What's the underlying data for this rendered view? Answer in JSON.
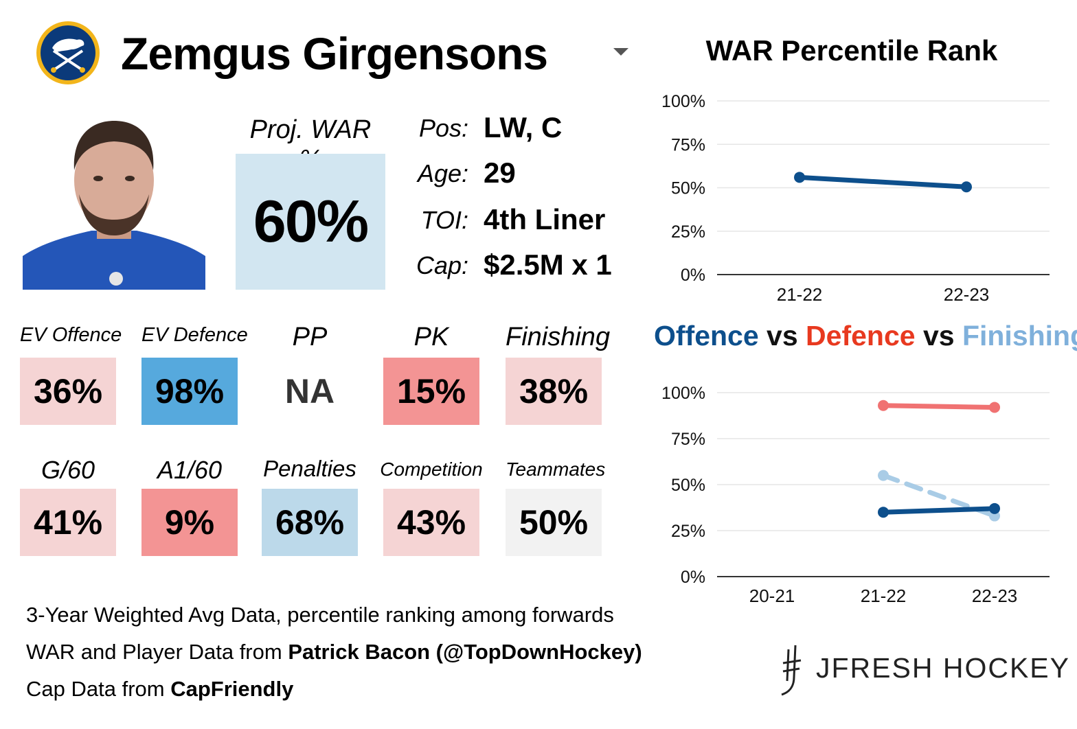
{
  "player": {
    "name": "Zemgus Girgensons",
    "team_logo": "sabres-logo-icon",
    "photo": "player-headshot-image"
  },
  "proj_war": {
    "label": "Proj. WAR %",
    "value": "60%"
  },
  "info": [
    {
      "label": "Pos:",
      "value": "LW, C"
    },
    {
      "label": "Age:",
      "value": "29"
    },
    {
      "label": "TOI:",
      "value": "4th Liner"
    },
    {
      "label": "Cap:",
      "value": "$2.5M x 1"
    }
  ],
  "stats_row1": [
    {
      "label": "EV Offence",
      "value": "36%",
      "color": "#f5d4d4"
    },
    {
      "label": "EV Defence",
      "value": "98%",
      "color": "#56a9dd"
    },
    {
      "label": "PP",
      "value": "NA",
      "color": "#ffffff"
    },
    {
      "label": "PK",
      "value": "15%",
      "color": "#f39494"
    },
    {
      "label": "Finishing",
      "value": "38%",
      "color": "#f5d4d4"
    }
  ],
  "stats_row2": [
    {
      "label": "G/60",
      "value": "41%",
      "color": "#f5d4d4"
    },
    {
      "label": "A1/60",
      "value": "9%",
      "color": "#f39494"
    },
    {
      "label": "Penalties",
      "value": "68%",
      "color": "#bcd9ea"
    },
    {
      "label": "Competition",
      "value": "43%",
      "color": "#f5d4d4"
    },
    {
      "label": "Teammates",
      "value": "50%",
      "color": "#f2f2f2"
    }
  ],
  "footer": {
    "line1": "3-Year Weighted Avg Data, percentile ranking among forwards",
    "line2_prefix": "WAR and Player Data from ",
    "line2_bold": "Patrick Bacon (@TopDownHockey)",
    "line3_prefix": "Cap Data from ",
    "line3_bold": "CapFriendly"
  },
  "brand": "JFRESH HOCKEY",
  "chart_data": [
    {
      "type": "line",
      "title": "WAR Percentile Rank",
      "categories": [
        "21-22",
        "22-23"
      ],
      "series": [
        {
          "values": [
            56,
            50.5
          ],
          "color": "#0d4f8c"
        }
      ],
      "yticks": [
        "100%",
        "75%",
        "50%",
        "25%",
        "0%"
      ],
      "ylim": [
        0,
        100
      ],
      "grid": true
    },
    {
      "type": "line",
      "title_parts": [
        {
          "text": "Offence",
          "color": "#0d4f8c"
        },
        {
          "text": " vs ",
          "color": "#111111"
        },
        {
          "text": "Defence",
          "color": "#e8391f"
        },
        {
          "text": " vs ",
          "color": "#111111"
        },
        {
          "text": "Finishing",
          "color": "#7fb0db"
        }
      ],
      "categories": [
        "20-21",
        "21-22",
        "22-23"
      ],
      "series": [
        {
          "values": [
            null,
            93,
            92
          ],
          "color": "#f07272",
          "dashed": false
        },
        {
          "values": [
            null,
            55,
            33
          ],
          "color": "#a9cce6",
          "dashed": true
        },
        {
          "values": [
            null,
            35,
            37
          ],
          "color": "#0d4f8c",
          "dashed": false
        }
      ],
      "yticks": [
        "100%",
        "75%",
        "50%",
        "25%",
        "0%"
      ],
      "ylim": [
        0,
        100
      ],
      "grid": true
    }
  ]
}
